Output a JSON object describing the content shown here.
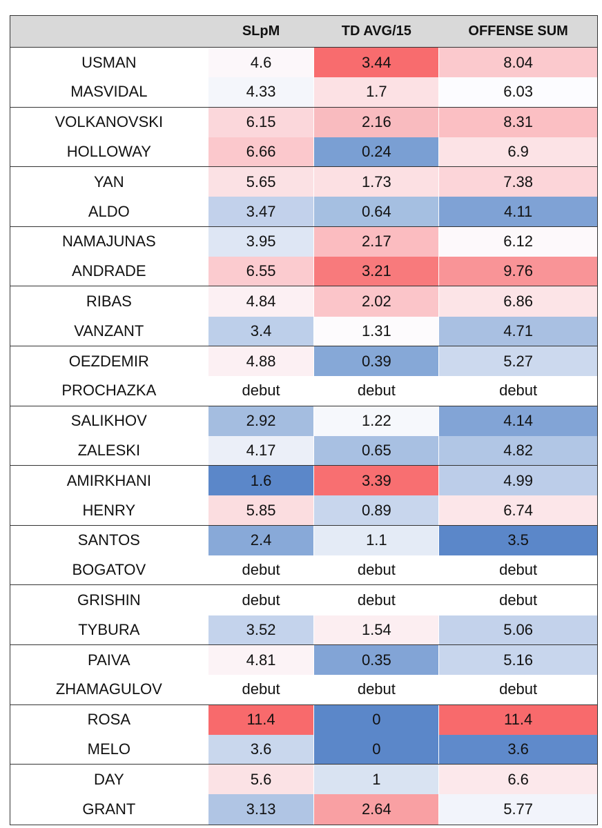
{
  "columns": [
    "",
    "SLpM",
    "TD AVG/15",
    "OFFENSE SUM"
  ],
  "rows": [
    {
      "name": "USMAN",
      "slpm": "4.6",
      "td": "3.44",
      "sum": "8.04",
      "colors": [
        "#fcf7fa",
        "#f86c6e",
        "#fbc9cd"
      ]
    },
    {
      "name": "MASVIDAL",
      "slpm": "4.33",
      "td": "1.7",
      "sum": "6.03",
      "colors": [
        "#f4f6fb",
        "#fce1e4",
        "#fcfcff"
      ]
    },
    {
      "name": "VOLKANOVSKI",
      "slpm": "6.15",
      "td": "2.16",
      "sum": "8.31",
      "colors": [
        "#fbd7db",
        "#f9bbbf",
        "#fbbfc3"
      ]
    },
    {
      "name": "HOLLOWAY",
      "slpm": "6.66",
      "td": "0.24",
      "sum": "6.9",
      "colors": [
        "#fbc8cc",
        "#7a9fd3",
        "#fce3e6"
      ]
    },
    {
      "name": "YAN",
      "slpm": "5.65",
      "td": "1.73",
      "sum": "7.38",
      "colors": [
        "#fbe1e4",
        "#fce0e3",
        "#fcd5d9"
      ]
    },
    {
      "name": "ALDO",
      "slpm": "3.47",
      "td": "0.64",
      "sum": "4.11",
      "colors": [
        "#c2d1eb",
        "#a5bfe1",
        "#7fa2d5"
      ]
    },
    {
      "name": "NAMAJUNAS",
      "slpm": "3.95",
      "td": "2.17",
      "sum": "6.12",
      "colors": [
        "#dee6f4",
        "#fbbcc0",
        "#fdf9fb"
      ]
    },
    {
      "name": "ANDRADE",
      "slpm": "6.55",
      "td": "3.21",
      "sum": "9.76",
      "colors": [
        "#fbcbcf",
        "#f87a7c",
        "#f99497"
      ]
    },
    {
      "name": "RIBAS",
      "slpm": "4.84",
      "td": "2.02",
      "sum": "6.86",
      "colors": [
        "#fcf0f3",
        "#fbc5c9",
        "#fce4e7"
      ]
    },
    {
      "name": "VANZANT",
      "slpm": "3.4",
      "td": "1.31",
      "sum": "4.71",
      "colors": [
        "#bdcfea",
        "#fdfbfd",
        "#a9c0e2"
      ]
    },
    {
      "name": "OEZDEMIR",
      "slpm": "4.88",
      "td": "0.39",
      "sum": "5.27",
      "colors": [
        "#fcf0f3",
        "#86a8d7",
        "#ccd9ee"
      ]
    },
    {
      "name": "PROCHAZKA",
      "slpm": "debut",
      "td": "debut",
      "sum": "debut",
      "colors": [
        "#ffffff",
        "#ffffff",
        "#ffffff"
      ]
    },
    {
      "name": "SALIKHOV",
      "slpm": "2.92",
      "td": "1.22",
      "sum": "4.14",
      "colors": [
        "#a4bde0",
        "#f6f8fc",
        "#82a4d6"
      ]
    },
    {
      "name": "ZALESKI",
      "slpm": "4.17",
      "td": "0.65",
      "sum": "4.82",
      "colors": [
        "#ebeff8",
        "#a8c0e2",
        "#b1c6e5"
      ]
    },
    {
      "name": "AMIRKHANI",
      "slpm": "1.6",
      "td": "3.39",
      "sum": "4.99",
      "colors": [
        "#5b87c9",
        "#f86f71",
        "#bccde9"
      ]
    },
    {
      "name": "HENRY",
      "slpm": "5.85",
      "td": "0.89",
      "sum": "6.74",
      "colors": [
        "#fbdde0",
        "#c8d6ed",
        "#fce6e9"
      ]
    },
    {
      "name": "SANTOS",
      "slpm": "2.4",
      "td": "1.1",
      "sum": "3.5",
      "colors": [
        "#88a9d8",
        "#e4ebf6",
        "#5b87c9"
      ]
    },
    {
      "name": "BOGATOV",
      "slpm": "debut",
      "td": "debut",
      "sum": "debut",
      "colors": [
        "#ffffff",
        "#ffffff",
        "#ffffff"
      ]
    },
    {
      "name": "GRISHIN",
      "slpm": "debut",
      "td": "debut",
      "sum": "debut",
      "colors": [
        "#ffffff",
        "#ffffff",
        "#ffffff"
      ]
    },
    {
      "name": "TYBURA",
      "slpm": "3.52",
      "td": "1.54",
      "sum": "5.06",
      "colors": [
        "#c4d3ec",
        "#fceef1",
        "#c3d2eb"
      ]
    },
    {
      "name": "PAIVA",
      "slpm": "4.81",
      "td": "0.35",
      "sum": "5.16",
      "colors": [
        "#fcf3f6",
        "#82a4d6",
        "#c8d6ed"
      ]
    },
    {
      "name": "ZHAMAGULOV",
      "slpm": "debut",
      "td": "debut",
      "sum": "debut",
      "colors": [
        "#ffffff",
        "#ffffff",
        "#ffffff"
      ]
    },
    {
      "name": "ROSA",
      "slpm": "11.4",
      "td": "0",
      "sum": "11.4",
      "colors": [
        "#f86a6c",
        "#5b87c9",
        "#f86a6c"
      ]
    },
    {
      "name": "MELO",
      "slpm": "3.6",
      "td": "0",
      "sum": "3.6",
      "colors": [
        "#c9d7ed",
        "#5b87c9",
        "#5f8acb"
      ]
    },
    {
      "name": "DAY",
      "slpm": "5.6",
      "td": "1",
      "sum": "6.6",
      "colors": [
        "#fbe2e5",
        "#d9e3f2",
        "#fce8eb"
      ]
    },
    {
      "name": "GRANT",
      "slpm": "3.13",
      "td": "2.64",
      "sum": "5.77",
      "colors": [
        "#b0c5e4",
        "#f9a0a3",
        "#f2f4fb"
      ]
    }
  ]
}
